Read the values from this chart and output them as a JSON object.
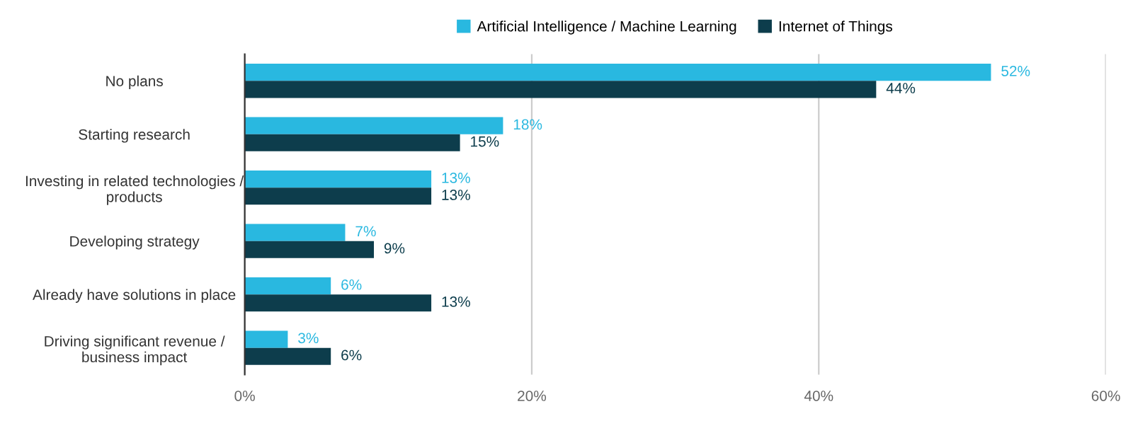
{
  "chart_data": {
    "type": "bar",
    "orientation": "horizontal",
    "categories": [
      "No plans",
      "Starting research",
      "Investing in related technologies /\nproducts",
      "Developing strategy",
      "Already have solutions in place",
      "Driving significant revenue /\nbusiness impact"
    ],
    "series": [
      {
        "name": "Artificial Intelligence / Machine Learning",
        "color": "#29b8e0",
        "values": [
          52,
          18,
          13,
          7,
          6,
          3
        ],
        "value_labels": [
          "52%",
          "18%",
          "13%",
          "7%",
          "6%",
          "3%"
        ]
      },
      {
        "name": "Internet of Things",
        "color": "#0d3d4c",
        "values": [
          44,
          15,
          13,
          9,
          13,
          6
        ],
        "value_labels": [
          "44%",
          "15%",
          "13%",
          "9%",
          "13%",
          "6%"
        ]
      }
    ],
    "xlim": [
      0,
      60
    ],
    "xticks": [
      {
        "value": 0,
        "label": "0%"
      },
      {
        "value": 20,
        "label": "20%"
      },
      {
        "value": 40,
        "label": "40%"
      },
      {
        "value": 60,
        "label": "60%"
      }
    ],
    "grid": "x",
    "legend": "top"
  }
}
